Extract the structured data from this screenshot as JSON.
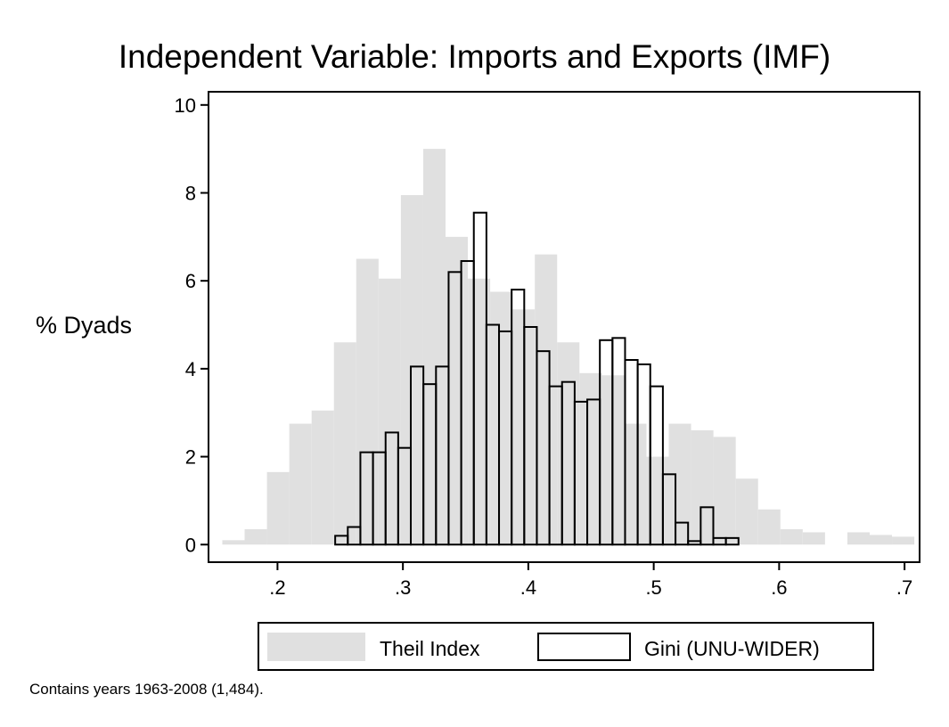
{
  "chart_data": {
    "type": "bar",
    "title": "Independent Variable: Imports and Exports (IMF)",
    "ylabel": "% Dyads",
    "xlabel": "",
    "note": "Contains years 1963-2008 (1,484).",
    "xlim": [
      0.145,
      0.712
    ],
    "ylim": [
      -0.4,
      10.3
    ],
    "xticks": [
      ".2",
      ".3",
      ".4",
      ".5",
      ".6",
      ".7"
    ],
    "xtick_values": [
      0.2,
      0.3,
      0.4,
      0.5,
      0.6,
      0.7
    ],
    "yticks": [
      "0",
      "2",
      "4",
      "6",
      "8",
      "10"
    ],
    "ytick_values": [
      0,
      2,
      4,
      6,
      8,
      10
    ],
    "legend_position": "bottom",
    "series": [
      {
        "name": "Theil Index",
        "style": "filled",
        "color": "#e0e0e0",
        "bin_start": 0.156,
        "bin_width": 0.0178,
        "values": [
          0.1,
          0.35,
          1.65,
          2.75,
          3.05,
          4.6,
          6.5,
          6.05,
          7.95,
          9.0,
          7.0,
          6.05,
          5.75,
          5.35,
          6.6,
          4.6,
          3.9,
          3.85,
          2.75,
          2.0,
          2.75,
          2.6,
          2.45,
          1.5,
          0.8,
          0.35,
          0.28,
          0.0,
          0.28,
          0.22,
          0.18
        ]
      },
      {
        "name": "Gini (UNU-WIDER)",
        "style": "outline",
        "color": "#000000",
        "bin_start": 0.246,
        "bin_width": 0.01005,
        "values": [
          0.2,
          0.4,
          2.1,
          2.1,
          2.55,
          2.2,
          4.05,
          3.65,
          4.05,
          6.2,
          6.45,
          7.55,
          5.0,
          4.85,
          5.8,
          4.95,
          4.4,
          3.6,
          3.7,
          3.25,
          3.3,
          4.65,
          4.7,
          4.2,
          4.1,
          3.6,
          1.6,
          0.5,
          0.08,
          0.85,
          0.15,
          0.15
        ]
      }
    ]
  }
}
